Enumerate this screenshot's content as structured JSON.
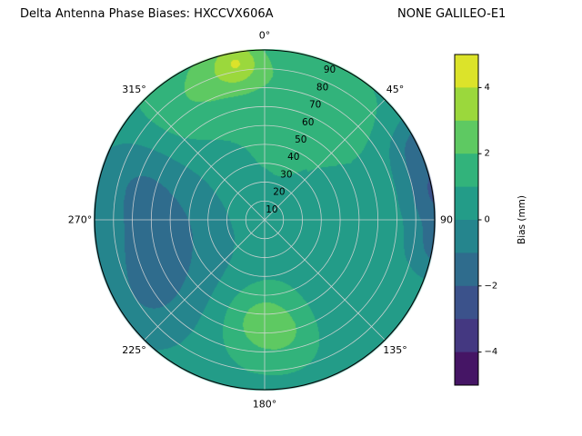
{
  "figure": {
    "background": "#ffffff"
  },
  "chart_data": {
    "type": "heatmap",
    "projection": "polar",
    "title": "Delta Antenna Phase Biases: HXCCVX606A      NONE GALILEO-E1",
    "title_left": "Delta Antenna Phase Biases: HXCCVX606A",
    "title_right": "NONE GALILEO-E1",
    "antenna": "HXCCVX606A",
    "signal": "NONE GALILEO-E1",
    "angular_tick_labels": [
      "0°",
      "45°",
      "90",
      "135°",
      "180°",
      "225°",
      "270°",
      "315°"
    ],
    "angular_tick_degrees": [
      0,
      45,
      90,
      135,
      180,
      225,
      270,
      315
    ],
    "radial_tick_labels": [
      "10",
      "20",
      "30",
      "40",
      "50",
      "60",
      "70",
      "80",
      "90"
    ],
    "radial_tick_values": [
      10,
      20,
      30,
      40,
      50,
      60,
      70,
      80,
      90
    ],
    "radial_max": 90,
    "radial_label_angle_deg": 22.5,
    "grid_color": "#d6d6d6",
    "colorbar": {
      "label": "Bias (mm)",
      "tick_labels": [
        "4",
        "2",
        "0",
        "−2",
        "−4"
      ],
      "tick_values": [
        4,
        2,
        0,
        -2,
        -4
      ],
      "vmin": -5,
      "vmax": 5,
      "level_step": 1
    },
    "colormap_name": "viridis",
    "colormap_stops": [
      [
        0.0,
        "#440154"
      ],
      [
        0.125,
        "#46327e"
      ],
      [
        0.25,
        "#3b528b"
      ],
      [
        0.375,
        "#2c728e"
      ],
      [
        0.5,
        "#21918c"
      ],
      [
        0.625,
        "#27ad81"
      ],
      [
        0.75,
        "#5ec962"
      ],
      [
        0.875,
        "#aadc32"
      ],
      [
        1.0,
        "#fde725"
      ]
    ],
    "field": {
      "units": "mm",
      "base_bias": 0.7,
      "blobs": [
        {
          "az_deg": 350,
          "radius": 85,
          "amplitude": 2.4,
          "sigma": 9
        },
        {
          "az_deg": 338,
          "radius": 82,
          "amplitude": 1.2,
          "sigma": 14
        },
        {
          "az_deg": 8,
          "radius": 76,
          "amplitude": 1.1,
          "sigma": 18
        },
        {
          "az_deg": 318,
          "radius": 72,
          "amplitude": 0.9,
          "sigma": 18
        },
        {
          "az_deg": 40,
          "radius": 68,
          "amplitude": 0.7,
          "sigma": 16
        },
        {
          "az_deg": 65,
          "radius": 93,
          "amplitude": -2.2,
          "sigma": 13
        },
        {
          "az_deg": 82,
          "radius": 94,
          "amplitude": -2.6,
          "sigma": 13
        },
        {
          "az_deg": 100,
          "radius": 93,
          "amplitude": -1.8,
          "sigma": 12
        },
        {
          "az_deg": 262,
          "radius": 55,
          "amplitude": -1.9,
          "sigma": 28
        },
        {
          "az_deg": 232,
          "radius": 76,
          "amplitude": -1.0,
          "sigma": 20
        },
        {
          "az_deg": 292,
          "radius": 72,
          "amplitude": -0.9,
          "sigma": 17
        },
        {
          "az_deg": 183,
          "radius": 54,
          "amplitude": 1.7,
          "sigma": 14
        },
        {
          "az_deg": 167,
          "radius": 62,
          "amplitude": 0.8,
          "sigma": 12
        },
        {
          "az_deg": 0,
          "radius": 28,
          "amplitude": 0.4,
          "sigma": 20
        },
        {
          "az_deg": 135,
          "radius": 62,
          "amplitude": -0.5,
          "sigma": 16
        }
      ]
    }
  }
}
